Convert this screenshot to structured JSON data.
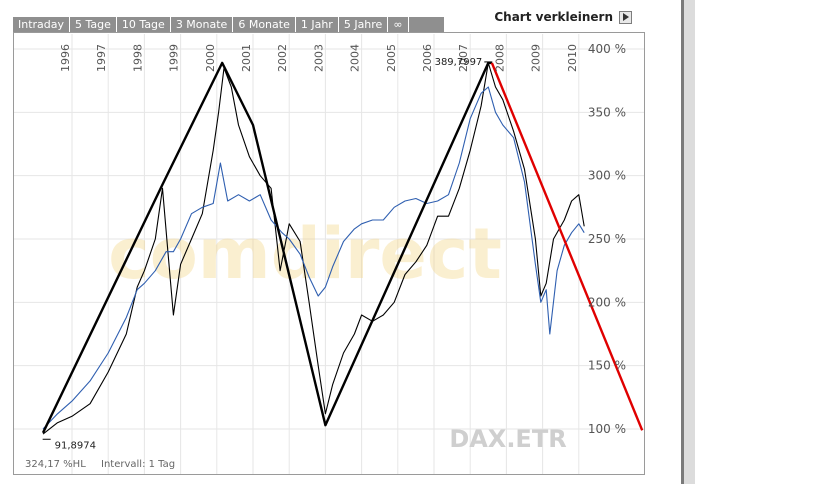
{
  "tabs": [
    "Intraday",
    "5 Tage",
    "10 Tage",
    "3 Monate",
    "6 Monate",
    "1 Jahr",
    "5 Jahre",
    "∞"
  ],
  "shrink_label": "Chart verkleinern",
  "shrink_icon": "play-triangle-icon",
  "watermark": "comdirect",
  "symbol": "DAX.ETR",
  "footer": {
    "hl": "324,17 %HL",
    "interval": "Intervall: 1 Tag"
  },
  "colors": {
    "black_series": "#000000",
    "blue_series": "#2f5fb0",
    "trend_lines": "#000000",
    "red_line": "#e00000",
    "watermark": "#f3d27a"
  },
  "chart_data": {
    "type": "line",
    "x_unit": "year",
    "y_unit": "%",
    "x_ticks": [
      "1996",
      "1997",
      "1998",
      "1999",
      "2000",
      "2001",
      "2002",
      "2003",
      "2004",
      "2005",
      "2006",
      "2007",
      "2008",
      "2009",
      "2010"
    ],
    "y_ticks": [
      "100 %",
      "150 %",
      "200 %",
      "250 %",
      "300 %",
      "350 %",
      "400 %"
    ],
    "ylim": [
      100,
      400
    ],
    "xlim": [
      1995.2,
      2010.25
    ],
    "grid": true,
    "annotations": [
      {
        "text": "91,8974",
        "x": 1995.3,
        "y": 91.9
      },
      {
        "text": "389,7997",
        "x": 2007.5,
        "y": 389.8
      }
    ],
    "series": [
      {
        "color": "#000000",
        "points": [
          [
            1995.2,
            96
          ],
          [
            1995.6,
            105
          ],
          [
            1996,
            110
          ],
          [
            1996.5,
            120
          ],
          [
            1997,
            145
          ],
          [
            1997.5,
            175
          ],
          [
            1997.8,
            212
          ],
          [
            1998,
            225
          ],
          [
            1998.3,
            250
          ],
          [
            1998.5,
            290
          ],
          [
            1998.65,
            240
          ],
          [
            1998.8,
            190
          ],
          [
            1999,
            230
          ],
          [
            1999.3,
            250
          ],
          [
            1999.6,
            270
          ],
          [
            1999.9,
            320
          ],
          [
            2000.05,
            350
          ],
          [
            2000.2,
            385
          ],
          [
            2000.4,
            370
          ],
          [
            2000.6,
            340
          ],
          [
            2000.9,
            315
          ],
          [
            2001.2,
            300
          ],
          [
            2001.5,
            290
          ],
          [
            2001.75,
            225
          ],
          [
            2002,
            262
          ],
          [
            2002.3,
            248
          ],
          [
            2002.55,
            200
          ],
          [
            2002.8,
            150
          ],
          [
            2003.0,
            112
          ],
          [
            2003.2,
            135
          ],
          [
            2003.5,
            160
          ],
          [
            2003.8,
            175
          ],
          [
            2004,
            190
          ],
          [
            2004.3,
            185
          ],
          [
            2004.6,
            190
          ],
          [
            2004.9,
            200
          ],
          [
            2005.2,
            222
          ],
          [
            2005.5,
            232
          ],
          [
            2005.8,
            245
          ],
          [
            2006.1,
            268
          ],
          [
            2006.4,
            268
          ],
          [
            2006.7,
            290
          ],
          [
            2007.0,
            320
          ],
          [
            2007.3,
            355
          ],
          [
            2007.5,
            389
          ],
          [
            2007.7,
            370
          ],
          [
            2007.9,
            360
          ],
          [
            2008.2,
            335
          ],
          [
            2008.5,
            305
          ],
          [
            2008.8,
            250
          ],
          [
            2008.95,
            205
          ],
          [
            2009.1,
            215
          ],
          [
            2009.3,
            250
          ],
          [
            2009.6,
            265
          ],
          [
            2009.8,
            280
          ],
          [
            2010.0,
            285
          ],
          [
            2010.15,
            260
          ]
        ]
      },
      {
        "color": "#2f5fb0",
        "points": [
          [
            1995.2,
            100
          ],
          [
            1995.6,
            112
          ],
          [
            1996,
            122
          ],
          [
            1996.5,
            138
          ],
          [
            1997,
            160
          ],
          [
            1997.5,
            188
          ],
          [
            1997.8,
            210
          ],
          [
            1998,
            215
          ],
          [
            1998.3,
            225
          ],
          [
            1998.6,
            240
          ],
          [
            1998.8,
            240
          ],
          [
            1999,
            250
          ],
          [
            1999.3,
            270
          ],
          [
            1999.6,
            275
          ],
          [
            1999.9,
            278
          ],
          [
            2000.1,
            310
          ],
          [
            2000.3,
            280
          ],
          [
            2000.6,
            285
          ],
          [
            2000.9,
            280
          ],
          [
            2001.2,
            285
          ],
          [
            2001.5,
            265
          ],
          [
            2001.8,
            255
          ],
          [
            2002,
            250
          ],
          [
            2002.3,
            238
          ],
          [
            2002.55,
            220
          ],
          [
            2002.8,
            205
          ],
          [
            2003.0,
            212
          ],
          [
            2003.2,
            228
          ],
          [
            2003.5,
            248
          ],
          [
            2003.8,
            258
          ],
          [
            2004,
            262
          ],
          [
            2004.3,
            265
          ],
          [
            2004.6,
            265
          ],
          [
            2004.9,
            275
          ],
          [
            2005.2,
            280
          ],
          [
            2005.5,
            282
          ],
          [
            2005.8,
            278
          ],
          [
            2006.1,
            280
          ],
          [
            2006.4,
            285
          ],
          [
            2006.7,
            310
          ],
          [
            2007.0,
            345
          ],
          [
            2007.3,
            365
          ],
          [
            2007.5,
            370
          ],
          [
            2007.7,
            350
          ],
          [
            2007.9,
            340
          ],
          [
            2008.2,
            330
          ],
          [
            2008.5,
            295
          ],
          [
            2008.8,
            230
          ],
          [
            2008.95,
            200
          ],
          [
            2009.1,
            210
          ],
          [
            2009.2,
            175
          ],
          [
            2009.4,
            225
          ],
          [
            2009.6,
            245
          ],
          [
            2009.8,
            255
          ],
          [
            2010.0,
            262
          ],
          [
            2010.15,
            255
          ]
        ]
      },
      {
        "color": "#000000",
        "points": [
          [
            1995.2,
            97
          ],
          [
            1998.5,
            293
          ],
          [
            2000.15,
            389
          ],
          [
            2001.0,
            340
          ],
          [
            2003.0,
            103
          ],
          [
            2007.5,
            389
          ],
          [
            2007.6,
            389
          ]
        ]
      },
      {
        "color": "#e00000",
        "points": [
          [
            2007.6,
            389
          ],
          [
            2011.75,
            99
          ]
        ]
      }
    ]
  }
}
